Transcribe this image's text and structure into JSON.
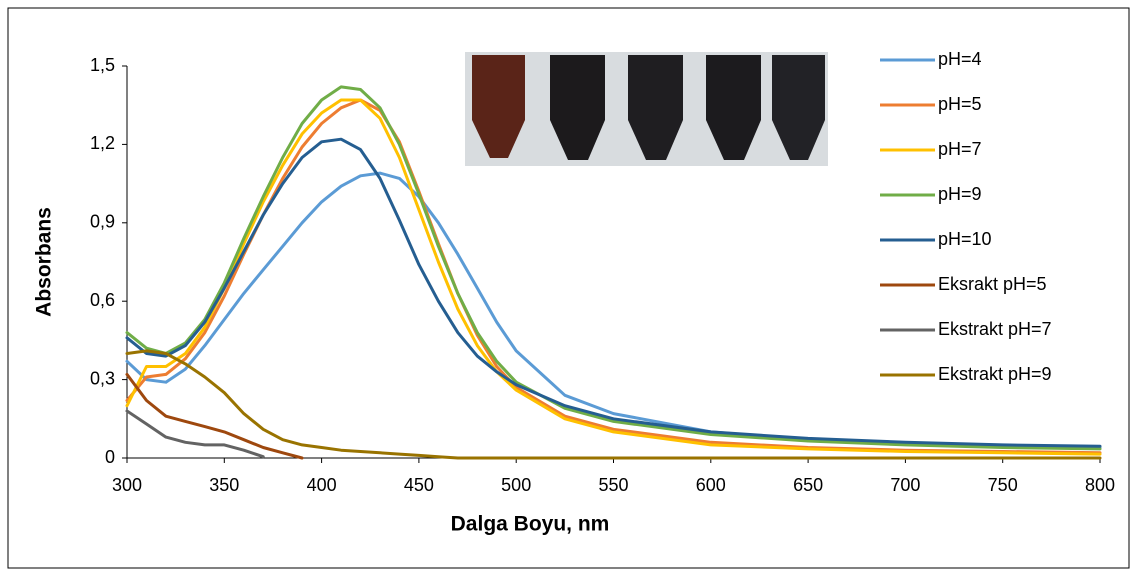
{
  "chart_data": {
    "type": "line",
    "xlabel": "Dalga Boyu, nm",
    "ylabel": "Absorbans",
    "x": [
      300,
      310,
      320,
      330,
      340,
      350,
      360,
      370,
      380,
      390,
      400,
      410,
      420,
      430,
      440,
      450,
      460,
      470,
      480,
      490,
      500,
      525,
      550,
      600,
      650,
      700,
      750,
      800
    ],
    "xlim": [
      300,
      800
    ],
    "xticks": [
      300,
      350,
      400,
      450,
      500,
      550,
      600,
      650,
      700,
      750,
      800
    ],
    "ylim": [
      0,
      1.5
    ],
    "yticks": [
      0,
      {
        "value": 0.3,
        "label": "0,3"
      },
      {
        "value": 0.6,
        "label": "0,6"
      },
      {
        "value": 0.9,
        "label": "0,9"
      },
      {
        "value": 1.2,
        "label": "1,2"
      },
      {
        "value": 1.5,
        "label": "1,5"
      }
    ],
    "legend": "right",
    "series": [
      {
        "name": "pH=4",
        "color": "#5b9bd5",
        "values": [
          0.37,
          0.3,
          0.29,
          0.34,
          0.43,
          0.53,
          0.63,
          0.72,
          0.81,
          0.9,
          0.98,
          1.04,
          1.08,
          1.09,
          1.07,
          1.0,
          0.9,
          0.78,
          0.65,
          0.52,
          0.41,
          0.24,
          0.17,
          0.1,
          0.07,
          0.055,
          0.045,
          0.04
        ]
      },
      {
        "name": "pH=5",
        "color": "#ed7d31",
        "values": [
          0.22,
          0.31,
          0.32,
          0.38,
          0.48,
          0.62,
          0.78,
          0.93,
          1.07,
          1.19,
          1.28,
          1.34,
          1.37,
          1.33,
          1.21,
          1.02,
          0.82,
          0.63,
          0.47,
          0.35,
          0.27,
          0.16,
          0.11,
          0.06,
          0.04,
          0.03,
          0.025,
          0.02
        ]
      },
      {
        "name": "pH=7",
        "color": "#ffc000",
        "values": [
          0.2,
          0.35,
          0.35,
          0.4,
          0.5,
          0.65,
          0.82,
          0.98,
          1.12,
          1.24,
          1.32,
          1.37,
          1.37,
          1.3,
          1.15,
          0.95,
          0.75,
          0.57,
          0.43,
          0.33,
          0.26,
          0.15,
          0.1,
          0.05,
          0.035,
          0.025,
          0.02,
          0.015
        ]
      },
      {
        "name": "pH=9",
        "color": "#70ad47",
        "values": [
          0.48,
          0.42,
          0.4,
          0.44,
          0.53,
          0.67,
          0.84,
          1.0,
          1.15,
          1.28,
          1.37,
          1.42,
          1.41,
          1.34,
          1.2,
          1.01,
          0.81,
          0.63,
          0.48,
          0.37,
          0.29,
          0.19,
          0.14,
          0.09,
          0.065,
          0.05,
          0.04,
          0.035
        ]
      },
      {
        "name": "pH=10",
        "color": "#255e91",
        "values": [
          0.46,
          0.4,
          0.39,
          0.43,
          0.52,
          0.65,
          0.79,
          0.93,
          1.05,
          1.15,
          1.21,
          1.22,
          1.18,
          1.07,
          0.91,
          0.74,
          0.6,
          0.48,
          0.39,
          0.33,
          0.28,
          0.2,
          0.15,
          0.1,
          0.075,
          0.06,
          0.05,
          0.045
        ]
      },
      {
        "name": "Eksrakt pH=5",
        "color": "#9e480e",
        "values": [
          0.32,
          0.22,
          0.16,
          0.14,
          0.12,
          0.1,
          0.07,
          0.04,
          0.02,
          0,
          null,
          null,
          null,
          null,
          null,
          null,
          null,
          null,
          null,
          null,
          null,
          null,
          null,
          null,
          null,
          null,
          null,
          null
        ]
      },
      {
        "name": "Ekstrakt pH=7",
        "color": "#636363",
        "values": [
          0.18,
          0.13,
          0.08,
          0.06,
          0.05,
          0.05,
          0.03,
          0.005,
          null,
          null,
          null,
          null,
          null,
          null,
          null,
          null,
          null,
          null,
          null,
          null,
          null,
          null,
          null,
          null,
          null,
          null,
          null,
          null
        ]
      },
      {
        "name": "Ekstrakt pH=9",
        "color": "#997300",
        "values": [
          0.4,
          0.41,
          0.4,
          0.36,
          0.31,
          0.25,
          0.17,
          0.11,
          0.07,
          0.05,
          0.04,
          0.03,
          0.025,
          0.02,
          0.015,
          0.01,
          0.005,
          0,
          0,
          0,
          0,
          0,
          0,
          0,
          0,
          0,
          0,
          0
        ]
      }
    ]
  }
}
